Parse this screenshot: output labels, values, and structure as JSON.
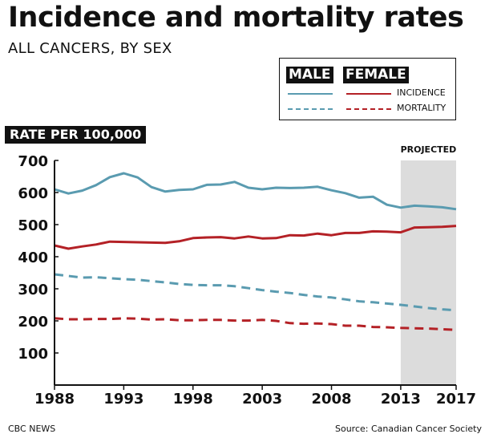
{
  "header": {
    "title": "Incidence and mortality rates",
    "subtitle": "ALL CANCERS, BY SEX"
  },
  "legend": {
    "male": "MALE",
    "female": "FEMALE",
    "incidence": "INCIDENCE",
    "mortality": "MORTALITY"
  },
  "footer": {
    "source_left": "CBC NEWS",
    "source_right": "Source: Canadian Cancer Society"
  },
  "colors": {
    "male": "#5a9bb0",
    "female": "#b42126",
    "projected_band": "#dcdcdc"
  },
  "chart_data": {
    "type": "line",
    "title": "Incidence and mortality rates",
    "subtitle": "ALL CANCERS, BY SEX",
    "ylabel": "RATE PER 100,000",
    "xlabel": "",
    "xlim": [
      1988,
      2017
    ],
    "ylim": [
      0,
      700
    ],
    "yticks": [
      100,
      200,
      300,
      400,
      500,
      600,
      700
    ],
    "xticks": [
      1988,
      1993,
      1998,
      2003,
      2008,
      2013,
      2017
    ],
    "projected_label": "PROJECTED",
    "projected_range": [
      2013,
      2017
    ],
    "x": [
      1988,
      1989,
      1990,
      1991,
      1992,
      1993,
      1994,
      1995,
      1996,
      1997,
      1998,
      1999,
      2000,
      2001,
      2002,
      2003,
      2004,
      2005,
      2006,
      2007,
      2008,
      2009,
      2010,
      2011,
      2012,
      2013,
      2014,
      2015,
      2016,
      2017
    ],
    "series": [
      {
        "name": "Male incidence",
        "sex": "male",
        "measure": "incidence",
        "style": "solid",
        "values": [
          610,
          597,
          606,
          623,
          648,
          660,
          647,
          617,
          603,
          608,
          610,
          624,
          625,
          633,
          615,
          610,
          615,
          614,
          615,
          618,
          607,
          598,
          584,
          587,
          562,
          553,
          559,
          557,
          554,
          548
        ]
      },
      {
        "name": "Female incidence",
        "sex": "female",
        "measure": "incidence",
        "style": "solid",
        "values": [
          435,
          425,
          432,
          438,
          447,
          446,
          445,
          444,
          443,
          448,
          458,
          460,
          461,
          457,
          463,
          457,
          458,
          467,
          466,
          472,
          467,
          474,
          474,
          479,
          478,
          476,
          491,
          492,
          493,
          496
        ]
      },
      {
        "name": "Male mortality",
        "sex": "male",
        "measure": "mortality",
        "style": "dashed",
        "values": [
          345,
          340,
          335,
          336,
          333,
          330,
          328,
          324,
          320,
          315,
          312,
          311,
          311,
          308,
          302,
          296,
          291,
          287,
          281,
          276,
          273,
          267,
          261,
          258,
          254,
          250,
          245,
          240,
          236,
          233
        ]
      },
      {
        "name": "Female mortality",
        "sex": "female",
        "measure": "mortality",
        "style": "dashed",
        "values": [
          208,
          205,
          205,
          206,
          206,
          208,
          207,
          204,
          205,
          202,
          202,
          203,
          203,
          201,
          201,
          203,
          200,
          193,
          191,
          192,
          190,
          185,
          185,
          181,
          180,
          178,
          177,
          176,
          174,
          172
        ]
      }
    ]
  }
}
